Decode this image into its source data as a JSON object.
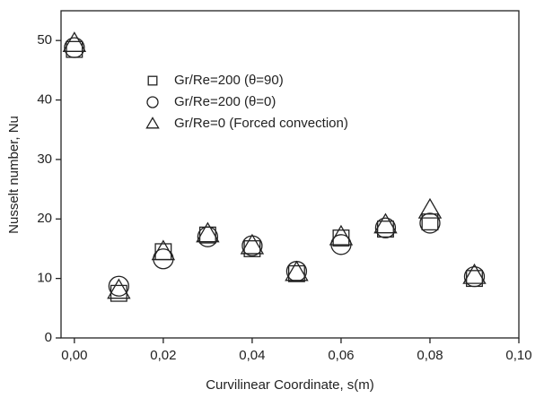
{
  "chart_data": {
    "type": "scatter",
    "xlabel": "Curvilinear Coordinate, s(m)",
    "ylabel": "Nusselt number, Nu",
    "xlim": [
      -0.003,
      0.1
    ],
    "ylim": [
      0,
      55
    ],
    "xticks": [
      {
        "value": 0,
        "label": "0,00"
      },
      {
        "value": 0.02,
        "label": "0,02"
      },
      {
        "value": 0.04,
        "label": "0,04"
      },
      {
        "value": 0.06,
        "label": "0,06"
      },
      {
        "value": 0.08,
        "label": "0,08"
      },
      {
        "value": 0.1,
        "label": "0,10"
      }
    ],
    "yticks": [
      0,
      10,
      20,
      30,
      40,
      50
    ],
    "x": [
      0,
      0.01,
      0.02,
      0.03,
      0.04,
      0.05,
      0.06,
      0.07,
      0.08,
      0.09
    ],
    "series": [
      {
        "name": "Gr/Re=200 (θ=90)",
        "marker": "square",
        "color": "#222222",
        "values": [
          48.5,
          7.5,
          14.5,
          17.3,
          15,
          10.8,
          16.8,
          18.3,
          19.5,
          10
        ]
      },
      {
        "name": "Gr/Re=200 (θ=0)",
        "marker": "circle",
        "color": "#222222",
        "values": [
          48.8,
          8.7,
          13.3,
          17,
          15.5,
          11.2,
          15.7,
          18.5,
          19.3,
          10.3
        ]
      },
      {
        "name": "Gr/Re=0 (Forced convection)",
        "marker": "triangle",
        "color": "#222222",
        "values": [
          49.5,
          8,
          14.5,
          17.5,
          15.5,
          11,
          17,
          19,
          21.5,
          10.5
        ]
      }
    ]
  }
}
